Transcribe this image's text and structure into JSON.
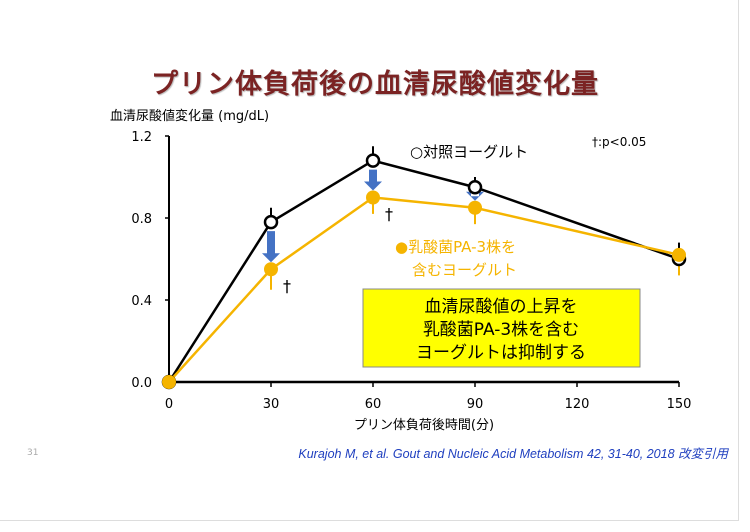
{
  "slide_title": "プリン体負荷後の血清尿酸値変化量",
  "page_number": "31",
  "citation": "Kurajoh M, et al. Gout and Nucleic Acid Metabolism 42, 31-40, 2018 改変引用",
  "chart_data": {
    "type": "line",
    "ylabel": "血清尿酸値変化量 (mg/dL)",
    "xlabel": "プリン体負荷後時間(分)",
    "x": [
      0,
      30,
      60,
      90,
      150
    ],
    "xticks": [
      "0",
      "30",
      "60",
      "90",
      "120",
      "150"
    ],
    "xtick_values": [
      0,
      30,
      60,
      90,
      120,
      150
    ],
    "yticks": [
      "0.0",
      "0.4",
      "0.8",
      "1.2"
    ],
    "ytick_values": [
      0,
      0.4,
      0.8,
      1.2
    ],
    "xlim": [
      0,
      150
    ],
    "ylim": [
      0,
      1.2
    ],
    "series": [
      {
        "name": "○対照ヨーグルト",
        "color": "#000000",
        "marker": "open-circle",
        "values": [
          0,
          0.78,
          1.08,
          0.95,
          0.6
        ],
        "error_up": [
          0,
          0.07,
          0.07,
          0.05,
          0.08
        ]
      },
      {
        "name": "●乳酸菌PA-3株を含むヨーグルト",
        "name_lines": [
          "●乳酸菌PA-3株を",
          "含むヨーグルト"
        ],
        "color": "#f5b400",
        "marker": "filled-circle",
        "values": [
          0,
          0.55,
          0.9,
          0.85,
          0.62
        ],
        "error_down": [
          0,
          0.1,
          0.08,
          0.08,
          0.1
        ]
      }
    ],
    "legend_control": "○対照ヨーグルト",
    "significance_note": "†:p<0.05",
    "significance_marks": [
      {
        "x": 30,
        "label": "†"
      },
      {
        "x": 60,
        "label": "†"
      }
    ],
    "arrows_at_x": [
      30,
      60,
      90
    ],
    "arrow_color": "#4472c4",
    "callout": [
      "血清尿酸値の上昇を",
      "乳酸菌PA-3株を含む",
      "ヨーグルトは抑制する"
    ],
    "callout_color": "#ffff00"
  }
}
